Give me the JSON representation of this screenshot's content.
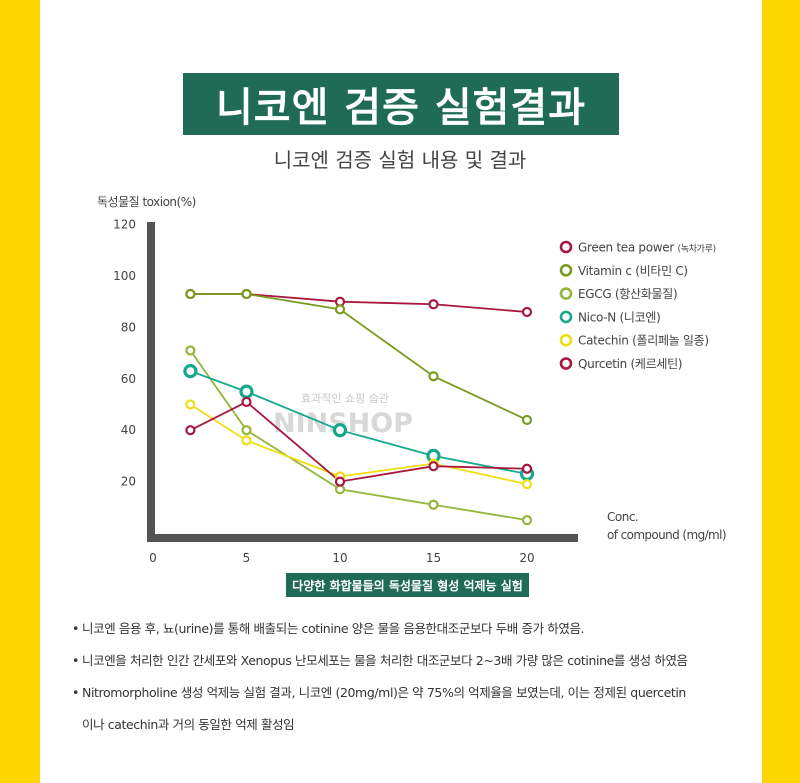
{
  "header": {
    "title": "니코엔 검증 실험결과",
    "subtitle": "니코엔 검증 실험 내용 및 결과"
  },
  "chart_data": {
    "type": "line",
    "ylabel": "독성물질 toxion(%)",
    "xlabel": "Conc. of compound (mg/ml)",
    "xlabel_line1": "Conc.",
    "xlabel_line2": "of compound (mg/ml)",
    "x_ticks": [
      0,
      5,
      10,
      15,
      20
    ],
    "y_ticks": [
      20,
      40,
      60,
      80,
      100,
      120
    ],
    "ylim": [
      0,
      120
    ],
    "xlim": [
      0,
      22
    ],
    "legend_position": "right",
    "series": [
      {
        "name": "Green tea power",
        "name_suffix": "(녹차가루)",
        "color": "#a8173f",
        "x": [
          2,
          5,
          10,
          15,
          20
        ],
        "y": [
          93,
          93,
          90,
          89,
          86
        ]
      },
      {
        "name": "Vitamin c",
        "name_suffix": "(비타민 C)",
        "color": "#7a9b1f",
        "x": [
          2,
          5,
          10,
          15,
          20
        ],
        "y": [
          93,
          93,
          87,
          61,
          44
        ]
      },
      {
        "name": "EGCG",
        "name_suffix": "(항산화물질)",
        "color": "#93b53a",
        "x": [
          2,
          5,
          10,
          15,
          20
        ],
        "y": [
          71,
          40,
          17,
          11,
          5
        ]
      },
      {
        "name": "Nico-N",
        "name_suffix": "(니코엔)",
        "color": "#15a88b",
        "x": [
          2,
          5,
          10,
          15,
          20
        ],
        "y": [
          63,
          55,
          40,
          30,
          23
        ]
      },
      {
        "name": "Catechin",
        "name_suffix": "(폴리페놀 일종)",
        "color": "#f0de14",
        "x": [
          2,
          5,
          10,
          15,
          20
        ],
        "y": [
          50,
          36,
          22,
          27,
          19
        ]
      },
      {
        "name": "Qurcetin",
        "name_suffix": "(케르세틴)",
        "color": "#a8173f",
        "x": [
          2,
          5,
          10,
          15,
          20
        ],
        "y": [
          40,
          51,
          20,
          26,
          25
        ]
      }
    ]
  },
  "watermark": {
    "line1": "효과적인 쇼핑 습관",
    "line2": "NINSHOP"
  },
  "caption": "다양한 화합물들의 독성물질 형성 억제능 실험",
  "notes": [
    "니코엔 음용 후, 뇨(urine)를 통해 배출되는 cotinine 양은 물을 음용한대조군보다 두배 증가 하였음.",
    "니코엔을 처리한 인간 간세포와 Xenopus 난모세포는 물을 처리한 대조군보다 2~3배 가량 많은 cotinine를 생성 하였음",
    "Nitromorpholine 생성 억제능 실험 결과, 니코엔 (20mg/ml)은 약 75%의 억제율을 보였는데, 이는 정제된 quercetin",
    "이나 catechin과 거의 동일한 억제 활성임"
  ],
  "bullet": "•"
}
